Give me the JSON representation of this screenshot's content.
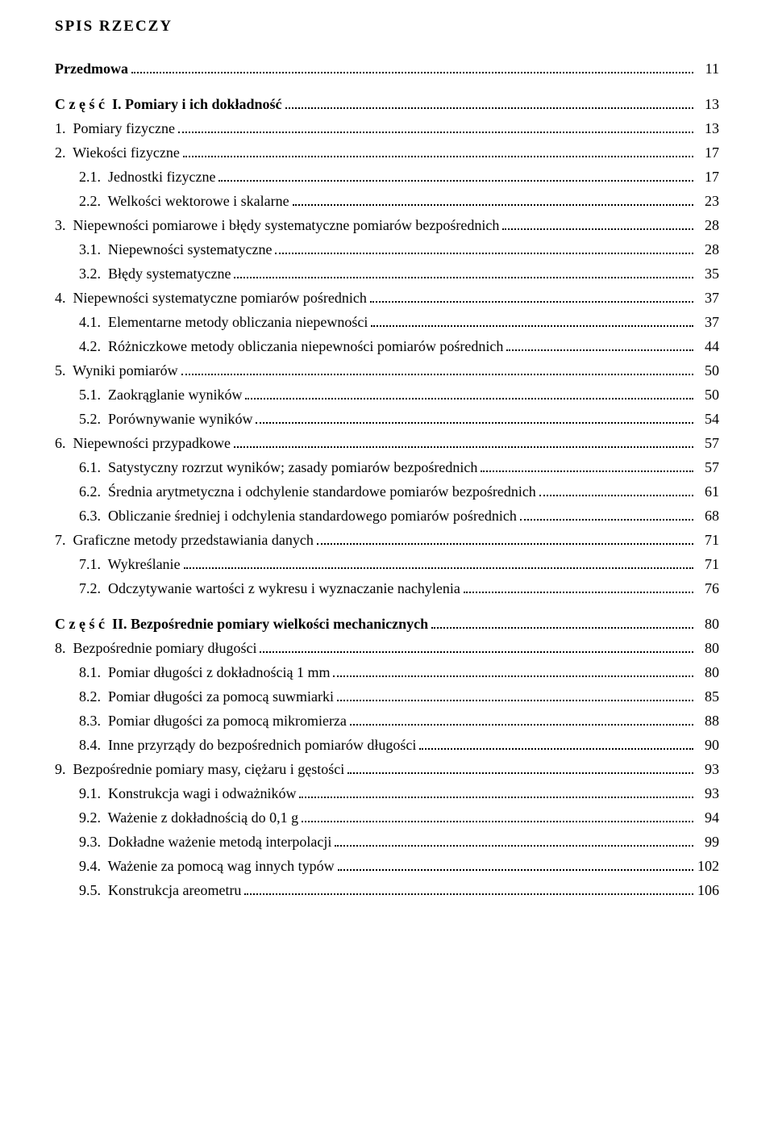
{
  "title": "SPIS RZECZY",
  "entries": [
    {
      "label": "Przedmowa",
      "page": "11",
      "indent": 0,
      "bold": true,
      "spaced_top": false
    },
    {
      "label": "C z ę ś ć  I. Pomiary i ich dokładność",
      "page": "13",
      "indent": 0,
      "bold": true,
      "spaced_top": true
    },
    {
      "label": "1.  Pomiary fizyczne",
      "page": "13",
      "indent": 0,
      "bold": false,
      "spaced_top": false
    },
    {
      "label": "2.  Wiekości fizyczne",
      "page": "17",
      "indent": 0,
      "bold": false,
      "spaced_top": false
    },
    {
      "label": "2.1.  Jednostki fizyczne",
      "page": "17",
      "indent": 1,
      "bold": false,
      "spaced_top": false
    },
    {
      "label": "2.2.  Welkości wektorowe i skalarne",
      "page": "23",
      "indent": 1,
      "bold": false,
      "spaced_top": false
    },
    {
      "label": "3.  Niepewności pomiarowe i błędy systematyczne pomiarów bezpośrednich",
      "page": "28",
      "indent": 0,
      "bold": false,
      "spaced_top": false
    },
    {
      "label": "3.1.  Niepewności systematyczne",
      "page": "28",
      "indent": 1,
      "bold": false,
      "spaced_top": false
    },
    {
      "label": "3.2.  Błędy systematyczne",
      "page": "35",
      "indent": 1,
      "bold": false,
      "spaced_top": false
    },
    {
      "label": "4.  Niepewności systematyczne pomiarów pośrednich",
      "page": "37",
      "indent": 0,
      "bold": false,
      "spaced_top": false
    },
    {
      "label": "4.1.  Elementarne metody obliczania niepewności",
      "page": "37",
      "indent": 1,
      "bold": false,
      "spaced_top": false
    },
    {
      "label": "4.2.  Różniczkowe metody obliczania niepewności pomiarów pośrednich",
      "page": "44",
      "indent": 1,
      "bold": false,
      "spaced_top": false
    },
    {
      "label": "5.  Wyniki pomiarów",
      "page": "50",
      "indent": 0,
      "bold": false,
      "spaced_top": false
    },
    {
      "label": "5.1.  Zaokrąglanie wyników",
      "page": "50",
      "indent": 1,
      "bold": false,
      "spaced_top": false
    },
    {
      "label": "5.2.  Porównywanie wyników",
      "page": "54",
      "indent": 1,
      "bold": false,
      "spaced_top": false
    },
    {
      "label": "6.  Niepewności przypadkowe",
      "page": "57",
      "indent": 0,
      "bold": false,
      "spaced_top": false
    },
    {
      "label": "6.1.  Satystyczny rozrzut wyników; zasady pomiarów bezpośrednich",
      "page": "57",
      "indent": 1,
      "bold": false,
      "spaced_top": false
    },
    {
      "label": "6.2.  Średnia arytmetyczna i odchylenie standardowe pomiarów bezpośrednich",
      "page": "61",
      "indent": 1,
      "bold": false,
      "spaced_top": false
    },
    {
      "label": "6.3.  Obliczanie średniej i odchylenia standardowego pomiarów pośrednich",
      "page": "68",
      "indent": 1,
      "bold": false,
      "spaced_top": false
    },
    {
      "label": "7.  Graficzne metody przedstawiania danych",
      "page": "71",
      "indent": 0,
      "bold": false,
      "spaced_top": false
    },
    {
      "label": "7.1.  Wykreślanie",
      "page": "71",
      "indent": 1,
      "bold": false,
      "spaced_top": false
    },
    {
      "label": "7.2.  Odczytywanie wartości z wykresu i wyznaczanie nachylenia",
      "page": "76",
      "indent": 1,
      "bold": false,
      "spaced_top": false
    },
    {
      "label": "C z ę ś ć  II. Bezpośrednie pomiary wielkości mechanicznych",
      "page": "80",
      "indent": 0,
      "bold": true,
      "spaced_top": true
    },
    {
      "label": "8.  Bezpośrednie pomiary długości",
      "page": "80",
      "indent": 0,
      "bold": false,
      "spaced_top": false
    },
    {
      "label": "8.1.  Pomiar długości z dokładnością 1 mm",
      "page": "80",
      "indent": 1,
      "bold": false,
      "spaced_top": false
    },
    {
      "label": "8.2.  Pomiar długości za pomocą suwmiarki",
      "page": "85",
      "indent": 1,
      "bold": false,
      "spaced_top": false
    },
    {
      "label": "8.3.  Pomiar długości za pomocą mikromierza",
      "page": "88",
      "indent": 1,
      "bold": false,
      "spaced_top": false
    },
    {
      "label": "8.4.  Inne przyrządy do bezpośrednich pomiarów długości",
      "page": "90",
      "indent": 1,
      "bold": false,
      "spaced_top": false
    },
    {
      "label": "9.  Bezpośrednie pomiary masy, ciężaru i gęstości",
      "page": "93",
      "indent": 0,
      "bold": false,
      "spaced_top": false
    },
    {
      "label": "9.1.  Konstrukcja wagi i odważników",
      "page": "93",
      "indent": 1,
      "bold": false,
      "spaced_top": false
    },
    {
      "label": "9.2.  Ważenie z dokładnością do 0,1 g",
      "page": "94",
      "indent": 1,
      "bold": false,
      "spaced_top": false
    },
    {
      "label": "9.3.  Dokładne ważenie metodą interpolacji",
      "page": "99",
      "indent": 1,
      "bold": false,
      "spaced_top": false
    },
    {
      "label": "9.4.  Ważenie za pomocą wag innych typów",
      "page": "102",
      "indent": 1,
      "bold": false,
      "spaced_top": false
    },
    {
      "label": "9.5.  Konstrukcja areometru",
      "page": "106",
      "indent": 1,
      "bold": false,
      "spaced_top": false
    }
  ]
}
